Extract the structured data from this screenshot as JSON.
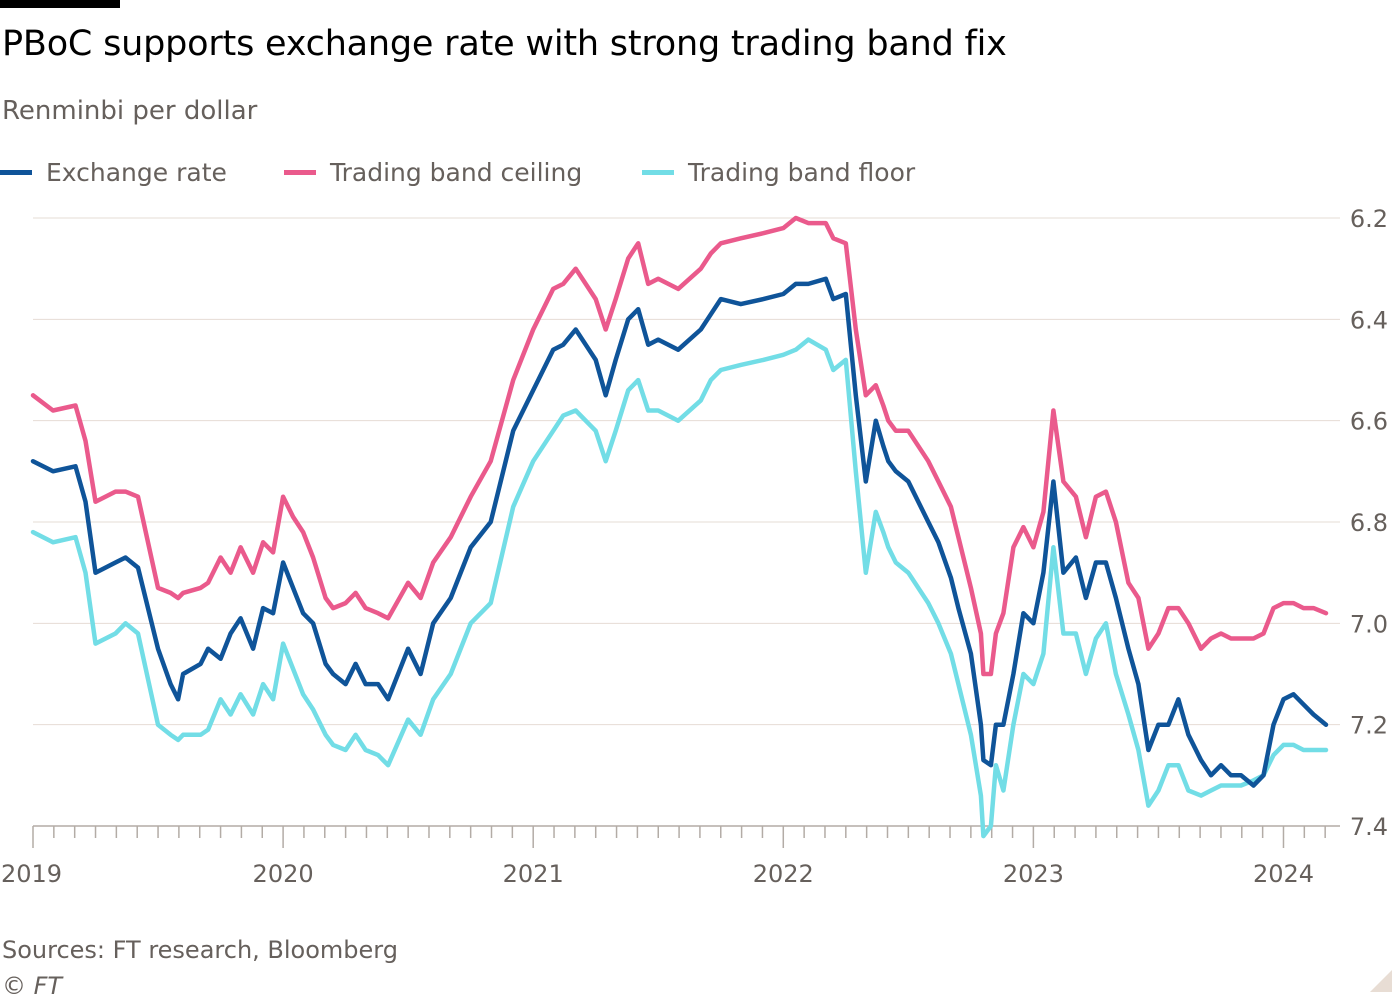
{
  "header": {
    "title": "PBoC supports exchange rate with strong trading band fix",
    "subtitle": "Renminbi per dollar"
  },
  "legend": [
    {
      "label": "Exchange rate",
      "color": "#0f5499"
    },
    {
      "label": "Trading band ceiling",
      "color": "#ea5a8c"
    },
    {
      "label": "Trading band floor",
      "color": "#72dde6"
    }
  ],
  "footer": {
    "sources": "Sources: FT research, Bloomberg",
    "copyright": "© FT"
  },
  "chart_data": {
    "type": "line",
    "title": "PBoC supports exchange rate with strong trading band fix",
    "ylabel": "Renminbi per dollar",
    "y_inverted": true,
    "ylim": [
      6.2,
      7.4
    ],
    "yticks": [
      6.2,
      6.4,
      6.6,
      6.8,
      7.0,
      7.2,
      7.4
    ],
    "ytick_labels": [
      "6.2",
      "6.4",
      "6.6",
      "6.8",
      "7.0",
      "7.2",
      "7.4"
    ],
    "xlim": [
      2019.0,
      2024.17
    ],
    "xticks": [
      2019,
      2020,
      2021,
      2022,
      2023,
      2024
    ],
    "xtick_labels": [
      "2019",
      "2020",
      "2021",
      "2022",
      "2023",
      "2024"
    ],
    "series": [
      {
        "name": "Exchange rate",
        "color": "#0f5499",
        "x": [
          2019.0,
          2019.08,
          2019.17,
          2019.21,
          2019.25,
          2019.33,
          2019.37,
          2019.42,
          2019.5,
          2019.55,
          2019.58,
          2019.6,
          2019.67,
          2019.7,
          2019.75,
          2019.79,
          2019.83,
          2019.88,
          2019.92,
          2019.96,
          2020.0,
          2020.04,
          2020.08,
          2020.12,
          2020.17,
          2020.2,
          2020.25,
          2020.29,
          2020.33,
          2020.38,
          2020.42,
          2020.5,
          2020.55,
          2020.6,
          2020.67,
          2020.75,
          2020.83,
          2020.92,
          2021.0,
          2021.08,
          2021.12,
          2021.17,
          2021.21,
          2021.25,
          2021.29,
          2021.33,
          2021.38,
          2021.42,
          2021.46,
          2021.5,
          2021.58,
          2021.67,
          2021.71,
          2021.75,
          2021.83,
          2021.92,
          2022.0,
          2022.05,
          2022.1,
          2022.17,
          2022.2,
          2022.25,
          2022.29,
          2022.33,
          2022.37,
          2022.4,
          2022.42,
          2022.45,
          2022.5,
          2022.58,
          2022.62,
          2022.67,
          2022.7,
          2022.75,
          2022.79,
          2022.8,
          2022.83,
          2022.85,
          2022.88,
          2022.92,
          2022.96,
          2023.0,
          2023.04,
          2023.08,
          2023.12,
          2023.17,
          2023.21,
          2023.25,
          2023.29,
          2023.33,
          2023.38,
          2023.42,
          2023.46,
          2023.5,
          2023.54,
          2023.58,
          2023.62,
          2023.67,
          2023.71,
          2023.75,
          2023.79,
          2023.83,
          2023.88,
          2023.92,
          2023.96,
          2024.0,
          2024.04,
          2024.08,
          2024.12,
          2024.17
        ],
        "y": [
          6.68,
          6.7,
          6.69,
          6.76,
          6.9,
          6.88,
          6.87,
          6.89,
          7.05,
          7.12,
          7.15,
          7.1,
          7.08,
          7.05,
          7.07,
          7.02,
          6.99,
          7.05,
          6.97,
          6.98,
          6.88,
          6.93,
          6.98,
          7.0,
          7.08,
          7.1,
          7.12,
          7.08,
          7.12,
          7.12,
          7.15,
          7.05,
          7.1,
          7.0,
          6.95,
          6.85,
          6.8,
          6.62,
          6.54,
          6.46,
          6.45,
          6.42,
          6.45,
          6.48,
          6.55,
          6.48,
          6.4,
          6.38,
          6.45,
          6.44,
          6.46,
          6.42,
          6.39,
          6.36,
          6.37,
          6.36,
          6.35,
          6.33,
          6.33,
          6.32,
          6.36,
          6.35,
          6.55,
          6.72,
          6.6,
          6.65,
          6.68,
          6.7,
          6.72,
          6.8,
          6.84,
          6.91,
          6.97,
          7.06,
          7.2,
          7.27,
          7.28,
          7.2,
          7.2,
          7.1,
          6.98,
          7.0,
          6.9,
          6.72,
          6.9,
          6.87,
          6.95,
          6.88,
          6.88,
          6.95,
          7.05,
          7.12,
          7.25,
          7.2,
          7.2,
          7.15,
          7.22,
          7.27,
          7.3,
          7.28,
          7.3,
          7.3,
          7.32,
          7.3,
          7.2,
          7.15,
          7.14,
          7.16,
          7.18,
          7.2
        ]
      },
      {
        "name": "Trading band ceiling",
        "color": "#ea5a8c",
        "x": [
          2019.0,
          2019.08,
          2019.17,
          2019.21,
          2019.25,
          2019.33,
          2019.37,
          2019.42,
          2019.5,
          2019.55,
          2019.58,
          2019.6,
          2019.67,
          2019.7,
          2019.75,
          2019.79,
          2019.83,
          2019.88,
          2019.92,
          2019.96,
          2020.0,
          2020.04,
          2020.08,
          2020.12,
          2020.17,
          2020.2,
          2020.25,
          2020.29,
          2020.33,
          2020.38,
          2020.42,
          2020.5,
          2020.55,
          2020.6,
          2020.67,
          2020.75,
          2020.83,
          2020.92,
          2021.0,
          2021.08,
          2021.12,
          2021.17,
          2021.21,
          2021.25,
          2021.29,
          2021.33,
          2021.38,
          2021.42,
          2021.46,
          2021.5,
          2021.58,
          2021.67,
          2021.71,
          2021.75,
          2021.83,
          2021.92,
          2022.0,
          2022.05,
          2022.1,
          2022.17,
          2022.2,
          2022.25,
          2022.29,
          2022.33,
          2022.37,
          2022.4,
          2022.42,
          2022.45,
          2022.5,
          2022.58,
          2022.62,
          2022.67,
          2022.7,
          2022.75,
          2022.79,
          2022.8,
          2022.83,
          2022.85,
          2022.88,
          2022.92,
          2022.96,
          2023.0,
          2023.04,
          2023.08,
          2023.12,
          2023.17,
          2023.21,
          2023.25,
          2023.29,
          2023.33,
          2023.38,
          2023.42,
          2023.46,
          2023.5,
          2023.54,
          2023.58,
          2023.62,
          2023.67,
          2023.71,
          2023.75,
          2023.79,
          2023.83,
          2023.88,
          2023.92,
          2023.96,
          2024.0,
          2024.04,
          2024.08,
          2024.12,
          2024.17
        ],
        "y": [
          6.55,
          6.58,
          6.57,
          6.64,
          6.76,
          6.74,
          6.74,
          6.75,
          6.93,
          6.94,
          6.95,
          6.94,
          6.93,
          6.92,
          6.87,
          6.9,
          6.85,
          6.9,
          6.84,
          6.86,
          6.75,
          6.79,
          6.82,
          6.87,
          6.95,
          6.97,
          6.96,
          6.94,
          6.97,
          6.98,
          6.99,
          6.92,
          6.95,
          6.88,
          6.83,
          6.75,
          6.68,
          6.52,
          6.42,
          6.34,
          6.33,
          6.3,
          6.33,
          6.36,
          6.42,
          6.36,
          6.28,
          6.25,
          6.33,
          6.32,
          6.34,
          6.3,
          6.27,
          6.25,
          6.24,
          6.23,
          6.22,
          6.2,
          6.21,
          6.21,
          6.24,
          6.25,
          6.42,
          6.55,
          6.53,
          6.57,
          6.6,
          6.62,
          6.62,
          6.68,
          6.72,
          6.77,
          6.83,
          6.93,
          7.02,
          7.1,
          7.1,
          7.02,
          6.98,
          6.85,
          6.81,
          6.85,
          6.78,
          6.58,
          6.72,
          6.75,
          6.83,
          6.75,
          6.74,
          6.8,
          6.92,
          6.95,
          7.05,
          7.02,
          6.97,
          6.97,
          7.0,
          7.05,
          7.03,
          7.02,
          7.03,
          7.03,
          7.03,
          7.02,
          6.97,
          6.96,
          6.96,
          6.97,
          6.97,
          6.98
        ]
      },
      {
        "name": "Trading band floor",
        "color": "#72dde6",
        "x": [
          2019.0,
          2019.08,
          2019.17,
          2019.21,
          2019.25,
          2019.33,
          2019.37,
          2019.42,
          2019.5,
          2019.55,
          2019.58,
          2019.6,
          2019.67,
          2019.7,
          2019.75,
          2019.79,
          2019.83,
          2019.88,
          2019.92,
          2019.96,
          2020.0,
          2020.04,
          2020.08,
          2020.12,
          2020.17,
          2020.2,
          2020.25,
          2020.29,
          2020.33,
          2020.38,
          2020.42,
          2020.5,
          2020.55,
          2020.6,
          2020.67,
          2020.75,
          2020.83,
          2020.92,
          2021.0,
          2021.08,
          2021.12,
          2021.17,
          2021.21,
          2021.25,
          2021.29,
          2021.33,
          2021.38,
          2021.42,
          2021.46,
          2021.5,
          2021.58,
          2021.67,
          2021.71,
          2021.75,
          2021.83,
          2021.92,
          2022.0,
          2022.05,
          2022.1,
          2022.17,
          2022.2,
          2022.25,
          2022.29,
          2022.33,
          2022.37,
          2022.4,
          2022.42,
          2022.45,
          2022.5,
          2022.58,
          2022.62,
          2022.67,
          2022.7,
          2022.75,
          2022.79,
          2022.8,
          2022.83,
          2022.85,
          2022.88,
          2022.92,
          2022.96,
          2023.0,
          2023.04,
          2023.08,
          2023.12,
          2023.17,
          2023.21,
          2023.25,
          2023.29,
          2023.33,
          2023.38,
          2023.42,
          2023.46,
          2023.5,
          2023.54,
          2023.58,
          2023.62,
          2023.67,
          2023.71,
          2023.75,
          2023.79,
          2023.83,
          2023.88,
          2023.92,
          2023.96,
          2024.0,
          2024.04,
          2024.08,
          2024.12,
          2024.17
        ],
        "y": [
          6.82,
          6.84,
          6.83,
          6.9,
          7.04,
          7.02,
          7.0,
          7.02,
          7.2,
          7.22,
          7.23,
          7.22,
          7.22,
          7.21,
          7.15,
          7.18,
          7.14,
          7.18,
          7.12,
          7.15,
          7.04,
          7.09,
          7.14,
          7.17,
          7.22,
          7.24,
          7.25,
          7.22,
          7.25,
          7.26,
          7.28,
          7.19,
          7.22,
          7.15,
          7.1,
          7.0,
          6.96,
          6.77,
          6.68,
          6.62,
          6.59,
          6.58,
          6.6,
          6.62,
          6.68,
          6.62,
          6.54,
          6.52,
          6.58,
          6.58,
          6.6,
          6.56,
          6.52,
          6.5,
          6.49,
          6.48,
          6.47,
          6.46,
          6.44,
          6.46,
          6.5,
          6.48,
          6.7,
          6.9,
          6.78,
          6.82,
          6.85,
          6.88,
          6.9,
          6.96,
          7.0,
          7.06,
          7.12,
          7.22,
          7.34,
          7.42,
          7.4,
          7.28,
          7.33,
          7.2,
          7.1,
          7.12,
          7.06,
          6.85,
          7.02,
          7.02,
          7.1,
          7.03,
          7.0,
          7.1,
          7.18,
          7.25,
          7.36,
          7.33,
          7.28,
          7.28,
          7.33,
          7.34,
          7.33,
          7.32,
          7.32,
          7.32,
          7.31,
          7.3,
          7.26,
          7.24,
          7.24,
          7.25,
          7.25,
          7.25
        ]
      }
    ]
  }
}
